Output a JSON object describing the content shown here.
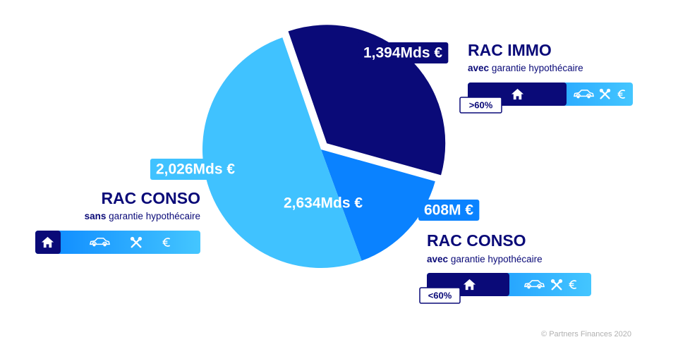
{
  "chart_data": {
    "type": "pie",
    "categories": [
      "RAC IMMO",
      "RAC CONSO avec garantie",
      "RAC CONSO sans garantie"
    ],
    "values": [
      1.394,
      0.608,
      2.026
    ],
    "value_labels": [
      "1,394Mds €",
      "608M €",
      "2,026Mds €"
    ],
    "colors": [
      "#0a0a78",
      "#0a82ff",
      "#40c2ff"
    ],
    "total": {
      "value": 2.634,
      "label": "2,634Mds €"
    },
    "annotations": [
      {
        "title": "RAC IMMO",
        "qualifier": "avec",
        "guarantee": "garantie hypothécaire",
        "tag": ">60%"
      },
      {
        "title": "RAC CONSO",
        "qualifier": "sans",
        "guarantee": "garantie hypothécaire"
      },
      {
        "title": "RAC CONSO",
        "qualifier": "avec",
        "guarantee": "garantie hypothécaire",
        "tag": "<60%"
      }
    ],
    "source": "© Partners Finances 2020"
  }
}
